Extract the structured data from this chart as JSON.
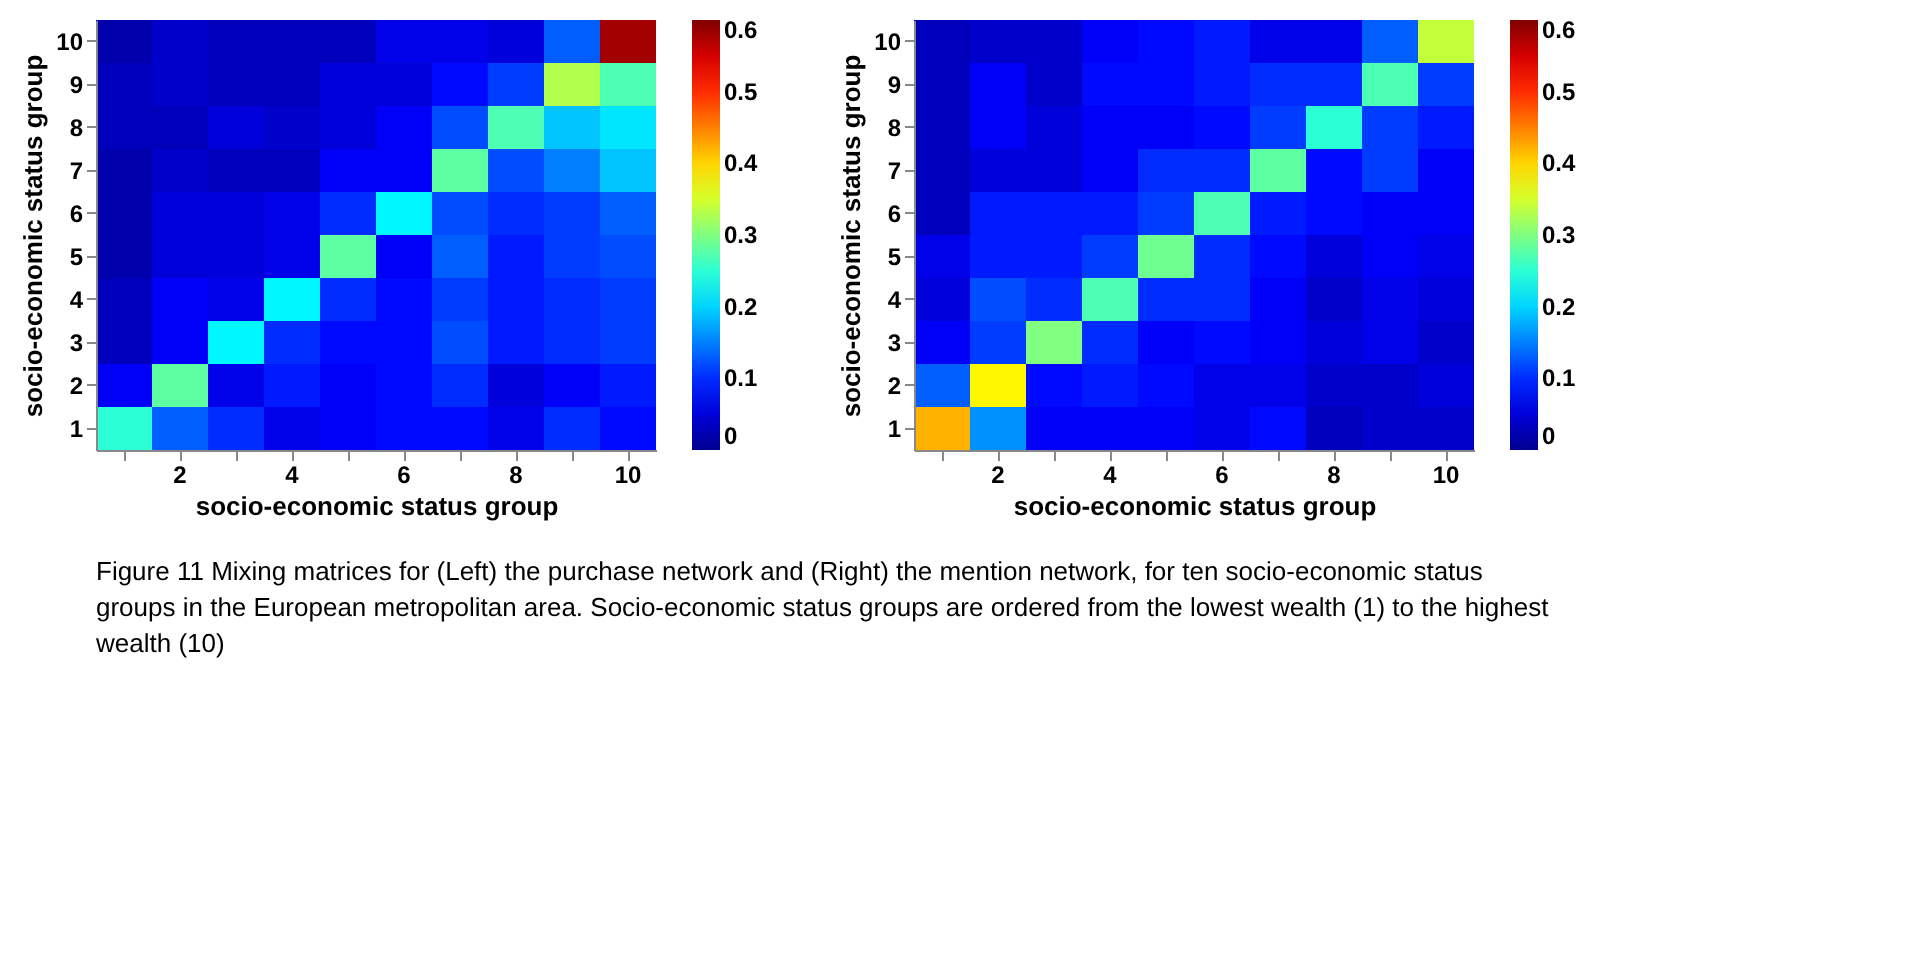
{
  "chart_data": [
    {
      "type": "heatmap",
      "xlabel": "socio-economic status group",
      "ylabel": "socio-economic status group",
      "categories": [
        null,
        "2",
        null,
        "4",
        null,
        "6",
        null,
        "8",
        null,
        "10"
      ],
      "y_categories": [
        "10",
        "9",
        "8",
        "7",
        "6",
        "5",
        "4",
        "3",
        "2",
        "1"
      ],
      "cells": [
        [
          0.02,
          0.04,
          0.03,
          0.03,
          0.03,
          0.06,
          0.06,
          0.05,
          0.13,
          0.58
        ],
        [
          0.03,
          0.04,
          0.03,
          0.03,
          0.05,
          0.05,
          0.08,
          0.11,
          0.33,
          0.27
        ],
        [
          0.03,
          0.03,
          0.05,
          0.04,
          0.05,
          0.07,
          0.12,
          0.27,
          0.19,
          0.21
        ],
        [
          0.02,
          0.04,
          0.03,
          0.03,
          0.07,
          0.07,
          0.28,
          0.12,
          0.15,
          0.19
        ],
        [
          0.02,
          0.05,
          0.05,
          0.06,
          0.1,
          0.22,
          0.12,
          0.1,
          0.11,
          0.13
        ],
        [
          0.02,
          0.05,
          0.05,
          0.06,
          0.28,
          0.07,
          0.13,
          0.09,
          0.11,
          0.12
        ],
        [
          0.03,
          0.07,
          0.06,
          0.22,
          0.1,
          0.08,
          0.11,
          0.09,
          0.1,
          0.11
        ],
        [
          0.03,
          0.07,
          0.22,
          0.1,
          0.08,
          0.08,
          0.12,
          0.09,
          0.1,
          0.11
        ],
        [
          0.07,
          0.28,
          0.06,
          0.09,
          0.07,
          0.08,
          0.1,
          0.05,
          0.07,
          0.09
        ],
        [
          0.25,
          0.13,
          0.1,
          0.06,
          0.07,
          0.08,
          0.08,
          0.06,
          0.1,
          0.08
        ]
      ],
      "clim": [
        0,
        0.6
      ],
      "cticks": [
        0,
        0.1,
        0.2,
        0.3,
        0.4,
        0.5,
        0.6
      ],
      "annotations": [
        "Figure 11  Mixing matrices for (Left) the purchase network and (Right) the mention network, for ten socio-economic status groups in the European metropolitan area. Socio-economic status groups are ordered from the lowest wealth (1) to the highest wealth (10)"
      ]
    },
    {
      "type": "heatmap",
      "xlabel": "socio-economic status group",
      "ylabel": "socio-economic status group",
      "categories": [
        null,
        "2",
        null,
        "4",
        null,
        "6",
        null,
        "8",
        null,
        "10"
      ],
      "y_categories": [
        "10",
        "9",
        "8",
        "7",
        "6",
        "5",
        "4",
        "3",
        "2",
        "1"
      ],
      "cells": [
        [
          0.03,
          0.04,
          0.04,
          0.07,
          0.08,
          0.09,
          0.06,
          0.06,
          0.13,
          0.34
        ],
        [
          0.03,
          0.07,
          0.04,
          0.08,
          0.08,
          0.09,
          0.1,
          0.1,
          0.27,
          0.11
        ],
        [
          0.03,
          0.07,
          0.05,
          0.07,
          0.07,
          0.08,
          0.11,
          0.25,
          0.11,
          0.09
        ],
        [
          0.03,
          0.05,
          0.05,
          0.07,
          0.1,
          0.1,
          0.28,
          0.08,
          0.11,
          0.07
        ],
        [
          0.03,
          0.09,
          0.09,
          0.09,
          0.11,
          0.27,
          0.09,
          0.08,
          0.07,
          0.07
        ],
        [
          0.06,
          0.09,
          0.09,
          0.11,
          0.29,
          0.1,
          0.08,
          0.05,
          0.07,
          0.06
        ],
        [
          0.05,
          0.12,
          0.1,
          0.27,
          0.1,
          0.1,
          0.07,
          0.04,
          0.06,
          0.05
        ],
        [
          0.07,
          0.11,
          0.3,
          0.1,
          0.07,
          0.08,
          0.07,
          0.05,
          0.06,
          0.04
        ],
        [
          0.13,
          0.38,
          0.08,
          0.09,
          0.08,
          0.06,
          0.06,
          0.04,
          0.04,
          0.05
        ],
        [
          0.42,
          0.16,
          0.07,
          0.07,
          0.07,
          0.06,
          0.08,
          0.03,
          0.04,
          0.04
        ]
      ],
      "clim": [
        0,
        0.6
      ],
      "cticks": [
        0,
        0.1,
        0.2,
        0.3,
        0.4,
        0.5,
        0.6
      ]
    }
  ]
}
